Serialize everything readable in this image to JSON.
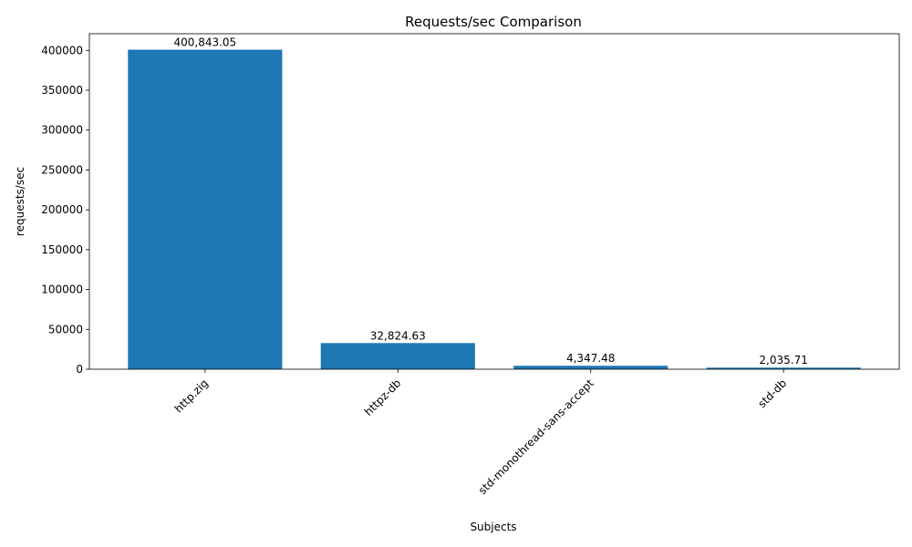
{
  "chart_data": {
    "type": "bar",
    "title": "Requests/sec Comparison",
    "xlabel": "Subjects",
    "ylabel": "requests/sec",
    "categories": [
      "http.zig",
      "httpz-db",
      "std-monothread-sans-accept",
      "std-db"
    ],
    "values": [
      400843.05,
      32824.63,
      4347.48,
      2035.71
    ],
    "data_labels": [
      "400,843.05",
      "32,824.63",
      "4,347.48",
      "2,035.71"
    ],
    "ylim": [
      0,
      420885.2
    ],
    "yticks": [
      0,
      50000,
      100000,
      150000,
      200000,
      250000,
      300000,
      350000,
      400000
    ],
    "ytick_labels": [
      "0",
      "50000",
      "100000",
      "150000",
      "200000",
      "250000",
      "300000",
      "350000",
      "400000"
    ],
    "bar_color": "#1f77b4",
    "grid": false,
    "legend": "none"
  }
}
